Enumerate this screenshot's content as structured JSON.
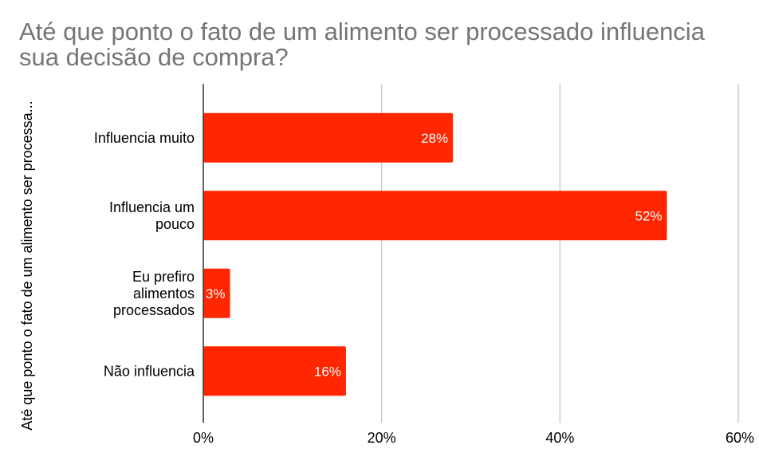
{
  "chart_data": {
    "type": "bar",
    "orientation": "horizontal",
    "title": "Até que ponto o fato de um alimento ser processado influencia sua decisão de compra?",
    "title_lines": [
      "Até que ponto o fato de um alimento ser processado influencia",
      "sua decisão de compra?"
    ],
    "ylabel": "Até que ponto o fato de um alimento ser processa...",
    "xlabel": "",
    "categories": [
      [
        "Influencia muito"
      ],
      [
        "Influencia um",
        "pouco"
      ],
      [
        "Eu prefiro",
        "alimentos",
        "processados"
      ],
      [
        "Não influencia"
      ]
    ],
    "values": [
      28,
      52,
      3,
      16
    ],
    "data_labels": [
      "28%",
      "52%",
      "3%",
      "16%"
    ],
    "xlim": [
      0,
      60
    ],
    "x_ticks": [
      0,
      20,
      40,
      60
    ],
    "x_tick_labels": [
      "0%",
      "20%",
      "40%",
      "60%"
    ],
    "grid": true,
    "legend": "none",
    "colors": {
      "bar": "#ff2600",
      "title": "#757575",
      "grid": "#cccccc",
      "axis": "#333333",
      "label": "#000000",
      "data_label": "#ffffff"
    }
  }
}
